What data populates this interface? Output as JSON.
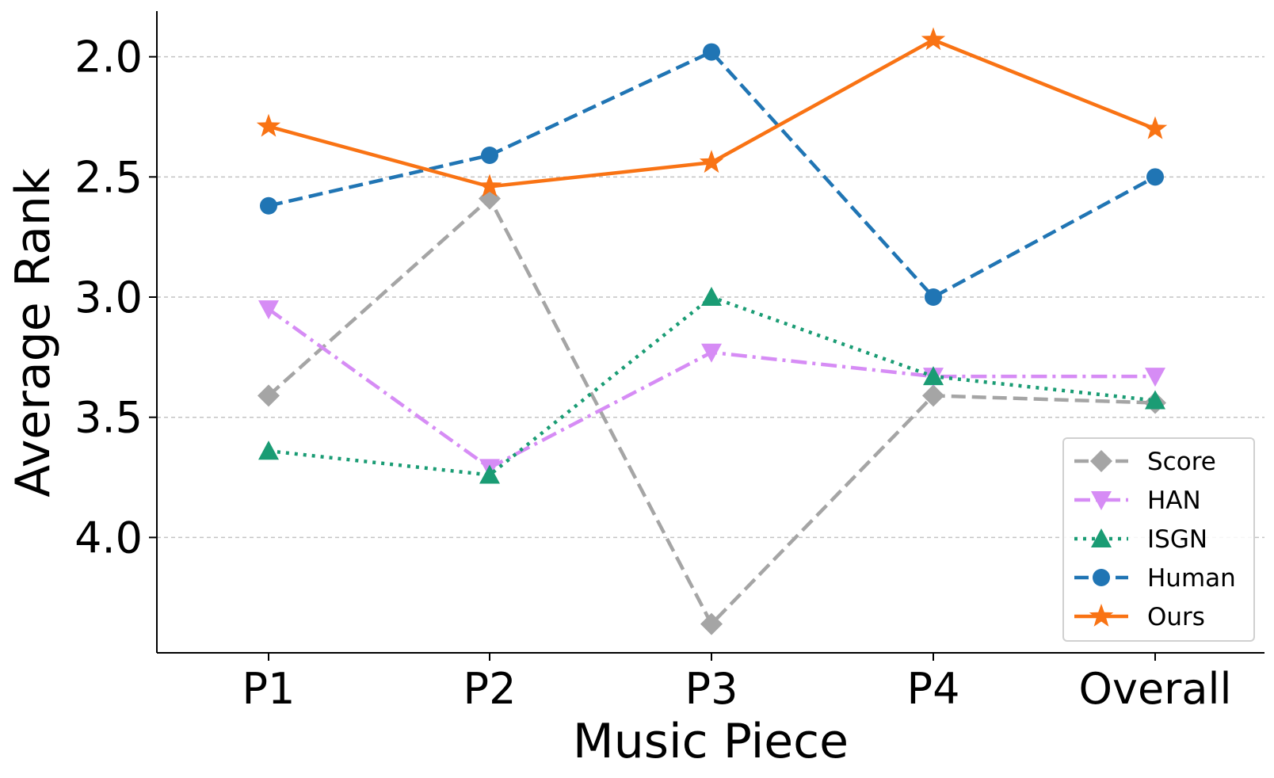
{
  "chart_data": {
    "type": "line",
    "xlabel": "Music Piece",
    "ylabel": "Average Rank",
    "categories": [
      "P1",
      "P2",
      "P3",
      "P4",
      "Overall"
    ],
    "y_inverted": true,
    "ylim": [
      4.48,
      1.81
    ],
    "yticks": [
      2.0,
      2.5,
      3.0,
      3.5,
      4.0
    ],
    "ytick_labels": [
      "2.0",
      "2.5",
      "3.0",
      "3.5",
      "4.0"
    ],
    "grid": "y-dashed",
    "legend_position": "lower-right",
    "series": [
      {
        "name": "Score",
        "values": [
          3.41,
          2.59,
          4.36,
          3.41,
          3.44
        ],
        "color": "#a5a5a5",
        "linestyle": "dashed",
        "marker": "diamond"
      },
      {
        "name": "HAN",
        "values": [
          3.05,
          3.71,
          3.23,
          3.33,
          3.33
        ],
        "color": "#d68cf5",
        "linestyle": "dashdot",
        "marker": "triangle-down"
      },
      {
        "name": "ISGN",
        "values": [
          3.64,
          3.74,
          3.0,
          3.33,
          3.43
        ],
        "color": "#1a9c74",
        "linestyle": "dotted",
        "marker": "triangle-up"
      },
      {
        "name": "Human",
        "values": [
          2.62,
          2.41,
          1.98,
          3.0,
          2.5
        ],
        "color": "#2075b4",
        "linestyle": "dashed",
        "marker": "circle"
      },
      {
        "name": "Ours",
        "values": [
          2.29,
          2.54,
          2.44,
          1.93,
          2.3
        ],
        "color": "#f97314",
        "linestyle": "solid",
        "marker": "star"
      }
    ]
  }
}
